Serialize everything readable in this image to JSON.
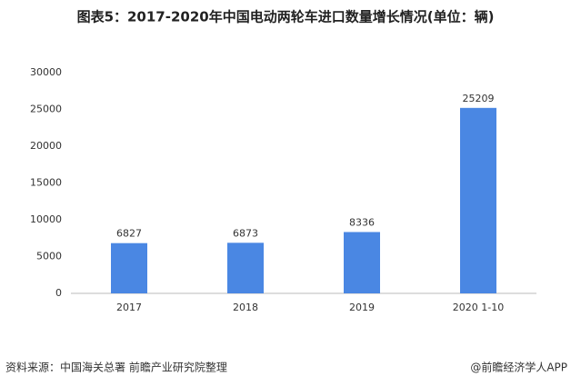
{
  "chart_data": {
    "type": "bar",
    "title": "图表5：2017-2020年中国电动两轮车进口数量增长情况(单位：辆)",
    "categories": [
      "2017",
      "2018",
      "2019",
      "2020 1-10"
    ],
    "values": [
      6827,
      6873,
      8336,
      25209
    ],
    "color": "#4a87e3",
    "ylim": [
      0,
      30000
    ],
    "yticks": [
      0,
      5000,
      10000,
      15000,
      20000,
      25000,
      30000
    ],
    "grid": false,
    "source": "资料来源：中国海关总署 前瞻产业研究院整理",
    "credit": "@前瞻经济学人APP"
  }
}
